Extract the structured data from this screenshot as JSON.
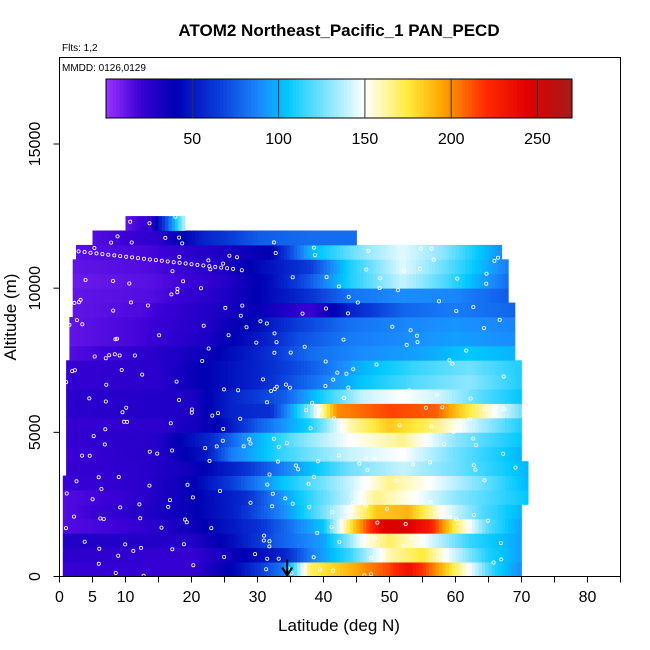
{
  "chart_data": {
    "type": "heatmap",
    "title": "ATOM2 Northeast_Pacific_1 PAN_PECD",
    "annotations": [
      "Flts: 1,2",
      "MMDD: 0126,0129"
    ],
    "xlabel": "Latitude (deg N)",
    "ylabel": "Altitude (m)",
    "xlim": [
      0,
      85
    ],
    "ylim": [
      0,
      18000
    ],
    "x_ticks": [
      0,
      5,
      10,
      20,
      30,
      40,
      50,
      60,
      70,
      80
    ],
    "x_minor_ticks": [
      15,
      25,
      35,
      45,
      55,
      65,
      75,
      85
    ],
    "y_ticks": [
      0,
      5000,
      10000,
      15000
    ],
    "colorbar": {
      "range": [
        0,
        270
      ],
      "ticks": [
        50,
        100,
        150,
        200,
        250
      ],
      "colors": [
        "#9a33ff",
        "#3b00d6",
        "#0000b3",
        "#0a3bd9",
        "#1a8cff",
        "#00c8ff",
        "#ffffff",
        "#ffeb3b",
        "#ffa500",
        "#ff2a00",
        "#e00000",
        "#a51c1c"
      ],
      "color_stops": [
        0,
        20,
        40,
        65,
        90,
        105,
        150,
        175,
        195,
        220,
        245,
        270
      ]
    },
    "band_height": 500,
    "bands": [
      {
        "z": 0,
        "x0": 0.5,
        "x1": 70,
        "k": [
          [
            0.5,
            22
          ],
          [
            20,
            22
          ],
          [
            27,
            45
          ],
          [
            34,
            85
          ],
          [
            38,
            170
          ],
          [
            44,
            190
          ],
          [
            50,
            215
          ],
          [
            53,
            235
          ],
          [
            57,
            200
          ],
          [
            62,
            150
          ],
          [
            66,
            110
          ],
          [
            70,
            90
          ]
        ]
      },
      {
        "z": 500,
        "x0": 0.5,
        "x1": 70,
        "k": [
          [
            0.5,
            25
          ],
          [
            20,
            22
          ],
          [
            28,
            40
          ],
          [
            34,
            55
          ],
          [
            38,
            85
          ],
          [
            44,
            115
          ],
          [
            50,
            160
          ],
          [
            55,
            175
          ],
          [
            60,
            140
          ],
          [
            65,
            110
          ],
          [
            70,
            95
          ]
        ]
      },
      {
        "z": 1000,
        "x0": 0.5,
        "x1": 70,
        "k": [
          [
            0.5,
            28
          ],
          [
            20,
            28
          ],
          [
            26,
            45
          ],
          [
            33,
            75
          ],
          [
            40,
            95
          ],
          [
            46,
            150
          ],
          [
            50,
            170
          ],
          [
            55,
            150
          ],
          [
            62,
            115
          ],
          [
            70,
            95
          ]
        ]
      },
      {
        "z": 1500,
        "x0": 0.5,
        "x1": 70,
        "k": [
          [
            0.5,
            15
          ],
          [
            10,
            20
          ],
          [
            20,
            35
          ],
          [
            30,
            60
          ],
          [
            40,
            105
          ],
          [
            45,
            190
          ],
          [
            49,
            245
          ],
          [
            52,
            250
          ],
          [
            56,
            230
          ],
          [
            60,
            170
          ],
          [
            65,
            120
          ],
          [
            70,
            95
          ]
        ]
      },
      {
        "z": 2000,
        "x0": 0.5,
        "x1": 70,
        "k": [
          [
            0.5,
            15
          ],
          [
            10,
            25
          ],
          [
            20,
            38
          ],
          [
            26,
            52
          ],
          [
            34,
            90
          ],
          [
            44,
            150
          ],
          [
            48,
            185
          ],
          [
            53,
            190
          ],
          [
            58,
            150
          ],
          [
            64,
            120
          ],
          [
            70,
            100
          ]
        ]
      },
      {
        "z": 2500,
        "x0": 0.5,
        "x1": 71,
        "k": [
          [
            0.5,
            15
          ],
          [
            10,
            22
          ],
          [
            20,
            38
          ],
          [
            28,
            58
          ],
          [
            36,
            105
          ],
          [
            44,
            140
          ],
          [
            48,
            165
          ],
          [
            54,
            150
          ],
          [
            60,
            130
          ],
          [
            71,
            105
          ]
        ]
      },
      {
        "z": 3000,
        "x0": 0.5,
        "x1": 71,
        "k": [
          [
            0.5,
            20
          ],
          [
            12,
            25
          ],
          [
            20,
            38
          ],
          [
            26,
            65
          ],
          [
            34,
            105
          ],
          [
            44,
            140
          ],
          [
            50,
            165
          ],
          [
            56,
            150
          ],
          [
            64,
            125
          ],
          [
            71,
            100
          ]
        ]
      },
      {
        "z": 3500,
        "x0": 1,
        "x1": 71,
        "k": [
          [
            1,
            22
          ],
          [
            12,
            25
          ],
          [
            20,
            35
          ],
          [
            28,
            60
          ],
          [
            36,
            95
          ],
          [
            44,
            125
          ],
          [
            52,
            140
          ],
          [
            60,
            125
          ],
          [
            71,
            100
          ]
        ]
      },
      {
        "z": 4000,
        "x0": 1,
        "x1": 70,
        "k": [
          [
            1,
            20
          ],
          [
            15,
            28
          ],
          [
            22,
            48
          ],
          [
            26,
            85
          ],
          [
            34,
            115
          ],
          [
            44,
            140
          ],
          [
            52,
            150
          ],
          [
            60,
            125
          ],
          [
            70,
            100
          ]
        ]
      },
      {
        "z": 4500,
        "x0": 1,
        "x1": 70,
        "k": [
          [
            1,
            22
          ],
          [
            15,
            28
          ],
          [
            23,
            58
          ],
          [
            28,
            90
          ],
          [
            36,
            125
          ],
          [
            44,
            150
          ],
          [
            52,
            165
          ],
          [
            60,
            130
          ],
          [
            70,
            105
          ]
        ]
      },
      {
        "z": 5000,
        "x0": 1,
        "x1": 70,
        "k": [
          [
            1,
            22
          ],
          [
            15,
            25
          ],
          [
            24,
            40
          ],
          [
            30,
            75
          ],
          [
            38,
            110
          ],
          [
            44,
            160
          ],
          [
            50,
            185
          ],
          [
            56,
            170
          ],
          [
            64,
            135
          ],
          [
            70,
            110
          ]
        ]
      },
      {
        "z": 5500,
        "x0": 1,
        "x1": 70,
        "k": [
          [
            1,
            25
          ],
          [
            20,
            30
          ],
          [
            26,
            55
          ],
          [
            32,
            60
          ],
          [
            38,
            130
          ],
          [
            42,
            200
          ],
          [
            50,
            215
          ],
          [
            57,
            210
          ],
          [
            62,
            175
          ],
          [
            70,
            125
          ]
        ]
      },
      {
        "z": 6000,
        "x0": 1,
        "x1": 70,
        "k": [
          [
            1,
            25
          ],
          [
            20,
            30
          ],
          [
            26,
            55
          ],
          [
            34,
            75
          ],
          [
            40,
            110
          ],
          [
            46,
            140
          ],
          [
            52,
            150
          ],
          [
            58,
            140
          ],
          [
            64,
            120
          ],
          [
            70,
            105
          ]
        ]
      },
      {
        "z": 6500,
        "x0": 1,
        "x1": 70,
        "k": [
          [
            1,
            22
          ],
          [
            15,
            26
          ],
          [
            22,
            40
          ],
          [
            30,
            55
          ],
          [
            38,
            80
          ],
          [
            46,
            105
          ],
          [
            54,
            120
          ],
          [
            62,
            130
          ],
          [
            70,
            110
          ]
        ]
      },
      {
        "z": 7000,
        "x0": 1,
        "x1": 70,
        "k": [
          [
            1,
            22
          ],
          [
            15,
            26
          ],
          [
            22,
            40
          ],
          [
            30,
            55
          ],
          [
            38,
            75
          ],
          [
            46,
            100
          ],
          [
            54,
            115
          ],
          [
            62,
            125
          ],
          [
            70,
            110
          ]
        ]
      },
      {
        "z": 7500,
        "x0": 1.5,
        "x1": 69,
        "k": [
          [
            1.5,
            15
          ],
          [
            12,
            24
          ],
          [
            22,
            35
          ],
          [
            30,
            55
          ],
          [
            38,
            80
          ],
          [
            46,
            90
          ],
          [
            54,
            95
          ],
          [
            62,
            105
          ],
          [
            69,
            100
          ]
        ]
      },
      {
        "z": 8000,
        "x0": 1.5,
        "x1": 69,
        "k": [
          [
            1.5,
            12
          ],
          [
            12,
            18
          ],
          [
            22,
            30
          ],
          [
            30,
            50
          ],
          [
            36,
            70
          ],
          [
            44,
            85
          ],
          [
            52,
            90
          ],
          [
            60,
            95
          ],
          [
            69,
            90
          ]
        ]
      },
      {
        "z": 8500,
        "x0": 1.5,
        "x1": 69,
        "k": [
          [
            1.5,
            12
          ],
          [
            12,
            18
          ],
          [
            22,
            28
          ],
          [
            30,
            45
          ],
          [
            36,
            65
          ],
          [
            44,
            82
          ],
          [
            52,
            88
          ],
          [
            60,
            92
          ],
          [
            69,
            88
          ]
        ]
      },
      {
        "z": 9000,
        "x0": 2,
        "x1": 69,
        "k": [
          [
            2,
            12
          ],
          [
            12,
            16
          ],
          [
            22,
            28
          ],
          [
            30,
            38
          ],
          [
            34,
            30
          ],
          [
            38,
            20
          ],
          [
            44,
            55
          ],
          [
            52,
            78
          ],
          [
            60,
            85
          ],
          [
            69,
            78
          ]
        ]
      },
      {
        "z": 9500,
        "x0": 2,
        "x1": 68,
        "k": [
          [
            2,
            12
          ],
          [
            14,
            15
          ],
          [
            24,
            28
          ],
          [
            30,
            40
          ],
          [
            36,
            55
          ],
          [
            44,
            82
          ],
          [
            52,
            90
          ],
          [
            60,
            88
          ],
          [
            68,
            75
          ]
        ]
      },
      {
        "z": 10000,
        "x0": 2,
        "x1": 68,
        "k": [
          [
            2,
            10
          ],
          [
            14,
            14
          ],
          [
            24,
            25
          ],
          [
            32,
            45
          ],
          [
            38,
            75
          ],
          [
            44,
            110
          ],
          [
            52,
            140
          ],
          [
            58,
            120
          ],
          [
            68,
            80
          ]
        ]
      },
      {
        "z": 10500,
        "x0": 2,
        "x1": 68,
        "k": [
          [
            2,
            12
          ],
          [
            14,
            16
          ],
          [
            24,
            28
          ],
          [
            32,
            48
          ],
          [
            38,
            65
          ],
          [
            44,
            110
          ],
          [
            52,
            145
          ],
          [
            58,
            125
          ],
          [
            68,
            85
          ]
        ]
      },
      {
        "z": 11000,
        "x0": 2.5,
        "x1": 67,
        "k": [
          [
            2.5,
            14
          ],
          [
            14,
            18
          ],
          [
            24,
            30
          ],
          [
            32,
            40
          ],
          [
            38,
            100
          ],
          [
            46,
            130
          ],
          [
            52,
            145
          ],
          [
            58,
            130
          ],
          [
            67,
            90
          ]
        ]
      },
      {
        "z": 11500,
        "x0": 5,
        "x1": 45,
        "k": [
          [
            5,
            15
          ],
          [
            15,
            25
          ],
          [
            22,
            55
          ],
          [
            30,
            75
          ],
          [
            38,
            80
          ],
          [
            45,
            80
          ]
        ]
      },
      {
        "z": 12000,
        "x0": 10,
        "x1": 19,
        "k": [
          [
            10,
            12
          ],
          [
            14,
            25
          ],
          [
            17,
            90
          ],
          [
            19,
            140
          ]
        ]
      }
    ],
    "arrow": {
      "x": 34.5,
      "y_top": 600,
      "y_bottom": 0
    }
  }
}
